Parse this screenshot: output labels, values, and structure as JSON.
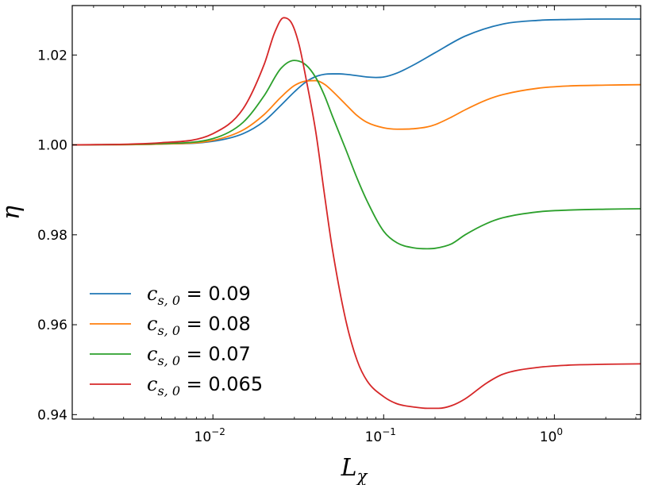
{
  "chart_data": {
    "type": "line",
    "xlabel": "L",
    "xlabel_sub": "χ",
    "ylabel": "η",
    "x_scale": "log",
    "xlim": [
      0.0015,
      3.2
    ],
    "ylim": [
      0.939,
      1.031
    ],
    "grid": false,
    "legend_position": "lower-left",
    "yticks": [
      {
        "value": 0.94,
        "label": "0.94"
      },
      {
        "value": 0.96,
        "label": "0.96"
      },
      {
        "value": 0.98,
        "label": "0.98"
      },
      {
        "value": 1.0,
        "label": "1.00"
      },
      {
        "value": 1.02,
        "label": "1.02"
      }
    ],
    "xticks": [
      {
        "value": 0.01,
        "base": "10",
        "exp": "−2"
      },
      {
        "value": 0.1,
        "base": "10",
        "exp": "−1"
      },
      {
        "value": 1,
        "base": "10",
        "exp": "0"
      }
    ],
    "series": [
      {
        "name": "c_{s,0} = 0.09",
        "legend_symbol": "c",
        "legend_sub": "s, 0",
        "legend_value": " = 0.09",
        "color": "#1f77b4",
        "x": [
          0.0015,
          0.005,
          0.01,
          0.015,
          0.02,
          0.025,
          0.03,
          0.035,
          0.04,
          0.045,
          0.05,
          0.055,
          0.06,
          0.07,
          0.08,
          0.09,
          0.1,
          0.12,
          0.15,
          0.2,
          0.3,
          0.5,
          0.8,
          1.2,
          2.0,
          3.2
        ],
        "y": [
          1.0,
          1.0002,
          1.0008,
          1.0025,
          1.0053,
          1.0088,
          1.0118,
          1.014,
          1.0152,
          1.0157,
          1.0158,
          1.0158,
          1.0157,
          1.0154,
          1.0151,
          1.015,
          1.0151,
          1.016,
          1.0178,
          1.0205,
          1.0242,
          1.0269,
          1.0277,
          1.0279,
          1.028,
          1.028
        ]
      },
      {
        "name": "c_{s,0} = 0.08",
        "legend_symbol": "c",
        "legend_sub": "s, 0",
        "legend_value": " = 0.08",
        "color": "#ff7f0e",
        "x": [
          0.0015,
          0.005,
          0.01,
          0.015,
          0.02,
          0.025,
          0.03,
          0.035,
          0.04,
          0.045,
          0.05,
          0.06,
          0.07,
          0.08,
          0.1,
          0.12,
          0.15,
          0.18,
          0.2,
          0.25,
          0.3,
          0.4,
          0.5,
          0.8,
          1.2,
          2.0,
          3.2
        ],
        "y": [
          1.0,
          1.0002,
          1.001,
          1.0033,
          1.0068,
          1.0106,
          1.0132,
          1.0142,
          1.0143,
          1.0135,
          1.012,
          1.009,
          1.0065,
          1.005,
          1.0038,
          1.0035,
          1.0036,
          1.004,
          1.0045,
          1.0062,
          1.0078,
          1.01,
          1.0112,
          1.0126,
          1.0131,
          1.0133,
          1.0134
        ]
      },
      {
        "name": "c_{s,0} = 0.07",
        "legend_symbol": "c",
        "legend_sub": "s, 0",
        "legend_value": " = 0.07",
        "color": "#2ca02c",
        "x": [
          0.0015,
          0.005,
          0.01,
          0.015,
          0.02,
          0.025,
          0.03,
          0.035,
          0.04,
          0.045,
          0.05,
          0.06,
          0.07,
          0.08,
          0.1,
          0.12,
          0.15,
          0.18,
          0.2,
          0.25,
          0.3,
          0.4,
          0.5,
          0.8,
          1.2,
          2.0,
          3.2
        ],
        "y": [
          1.0,
          1.0003,
          1.0014,
          1.005,
          1.011,
          1.017,
          1.0188,
          1.0178,
          1.015,
          1.011,
          1.0065,
          0.999,
          0.9925,
          0.9875,
          0.9808,
          0.9782,
          0.9771,
          0.9769,
          0.977,
          0.978,
          0.98,
          0.9825,
          0.9838,
          0.9851,
          0.9855,
          0.9857,
          0.9858
        ]
      },
      {
        "name": "c_{s,0} = 0.065",
        "legend_symbol": "c",
        "legend_sub": "s, 0",
        "legend_value": " = 0.065",
        "color": "#d62728",
        "x": [
          0.0015,
          0.005,
          0.01,
          0.015,
          0.02,
          0.023,
          0.026,
          0.029,
          0.032,
          0.035,
          0.04,
          0.045,
          0.05,
          0.06,
          0.07,
          0.08,
          0.1,
          0.12,
          0.15,
          0.18,
          0.21,
          0.25,
          0.3,
          0.4,
          0.5,
          0.8,
          1.2,
          2.0,
          3.2
        ],
        "y": [
          1.0,
          1.0005,
          1.0025,
          1.008,
          1.018,
          1.025,
          1.0283,
          1.027,
          1.0222,
          1.015,
          1.003,
          0.989,
          0.977,
          0.961,
          0.952,
          0.9475,
          0.944,
          0.9424,
          0.9417,
          0.9414,
          0.9414,
          0.942,
          0.9435,
          0.947,
          0.949,
          0.9505,
          0.951,
          0.9512,
          0.9513
        ]
      }
    ]
  }
}
